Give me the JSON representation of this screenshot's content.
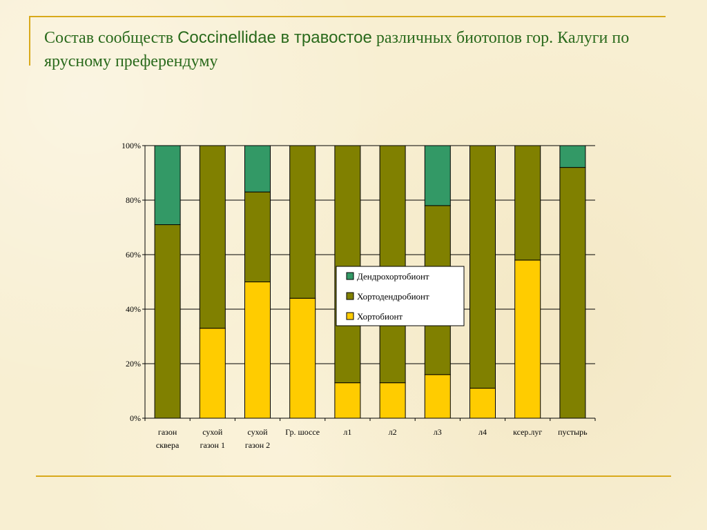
{
  "slide": {
    "title_part1": "Состав сообществ ",
    "title_latin": "Coccinellidae в травостое",
    "title_part2": " различных биотопов гор. Калуги по ярусному преферендуму"
  },
  "chart_data": {
    "type": "bar",
    "stacked": "percent",
    "categories": [
      [
        "газон",
        "сквера"
      ],
      [
        "сухой",
        "газон 1"
      ],
      [
        "сухой",
        "газон 2"
      ],
      [
        "Гр. шоссе"
      ],
      [
        "л1"
      ],
      [
        "л2"
      ],
      [
        "л3"
      ],
      [
        "л4"
      ],
      [
        "ксер.луг"
      ],
      [
        "пустырь"
      ]
    ],
    "series": [
      {
        "name": "Хортобионт",
        "color": "#ffcc00",
        "values": [
          0,
          33,
          50,
          44,
          13,
          13,
          16,
          11,
          58,
          0
        ]
      },
      {
        "name": "Хортодендробионт",
        "color": "#808000",
        "values": [
          71,
          67,
          33,
          56,
          87,
          87,
          62,
          89,
          42,
          92
        ]
      },
      {
        "name": "Дендрохортобионт",
        "color": "#339966",
        "values": [
          29,
          0,
          17,
          0,
          0,
          0,
          22,
          0,
          0,
          8
        ]
      }
    ],
    "legend_order": [
      "Дендрохортобионт",
      "Хортодендробионт",
      "Хортобионт"
    ],
    "legend_position": "center",
    "ylim": [
      0,
      100
    ],
    "yticks": [
      "0%",
      "20%",
      "40%",
      "60%",
      "80%",
      "100%"
    ],
    "grid": true
  }
}
